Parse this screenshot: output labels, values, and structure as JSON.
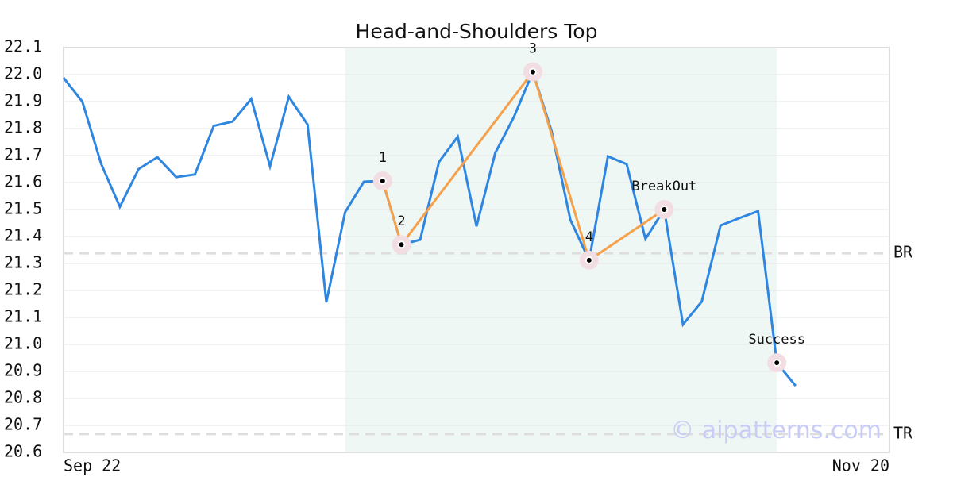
{
  "chart_data": {
    "type": "line",
    "title": "Head-and-Shoulders Top",
    "categories": [
      "Sep 22",
      null,
      null,
      null,
      null,
      null,
      null,
      null,
      null,
      null,
      null,
      null,
      null,
      null,
      null,
      null,
      null,
      null,
      null,
      null,
      null,
      null,
      null,
      null,
      null,
      null,
      null,
      null,
      null,
      null,
      null,
      null,
      null,
      null,
      null,
      null,
      null,
      null,
      null,
      null,
      null,
      null,
      null,
      null,
      "Nov 20"
    ],
    "series": [
      {
        "color": "#2f86e0",
        "values": [
          21.988,
          21.9,
          21.67,
          21.51,
          21.65,
          21.694,
          21.62,
          21.63,
          21.81,
          21.826,
          21.91,
          21.66,
          21.918,
          21.815,
          21.156,
          21.49,
          21.603,
          21.606,
          21.37,
          21.388,
          21.676,
          21.77,
          21.438,
          21.71,
          21.844,
          22.01,
          21.79,
          21.462,
          21.312,
          21.697,
          21.668,
          21.391,
          21.5,
          21.074,
          21.159,
          21.441,
          21.468,
          21.494,
          20.932,
          20.847,
          null,
          null,
          null,
          null,
          null
        ]
      }
    ],
    "pattern_color": "#f5a04a",
    "points": [
      {
        "label": "1",
        "x": 17,
        "y": 21.606
      },
      {
        "label": "2",
        "x": 18,
        "y": 21.37
      },
      {
        "label": "3",
        "x": 25,
        "y": 22.01
      },
      {
        "label": "4",
        "x": 28,
        "y": 21.312
      },
      {
        "label": "BreakOut",
        "x": 32,
        "y": 21.5
      }
    ],
    "result": {
      "label": "Success",
      "x": 38,
      "y": 20.932
    },
    "highlight": [
      15,
      38
    ],
    "highlight_color": "#eef7f3",
    "levels": [
      {
        "label": "BR",
        "value": 21.338
      },
      {
        "label": "TR",
        "value": 20.668
      }
    ],
    "watermark": "© aipatterns.com",
    "xlim": [
      0,
      44
    ],
    "ylim": [
      20.6,
      22.1
    ],
    "yticks": [
      20.6,
      20.7,
      20.8,
      20.9,
      {
        "value": 21.0,
        "label": "21.0"
      },
      21.1,
      21.2,
      21.3,
      21.4,
      21.5,
      21.6,
      21.7,
      21.8,
      21.9,
      {
        "value": 22.0,
        "label": "22.0"
      },
      22.1
    ],
    "grid": true
  }
}
